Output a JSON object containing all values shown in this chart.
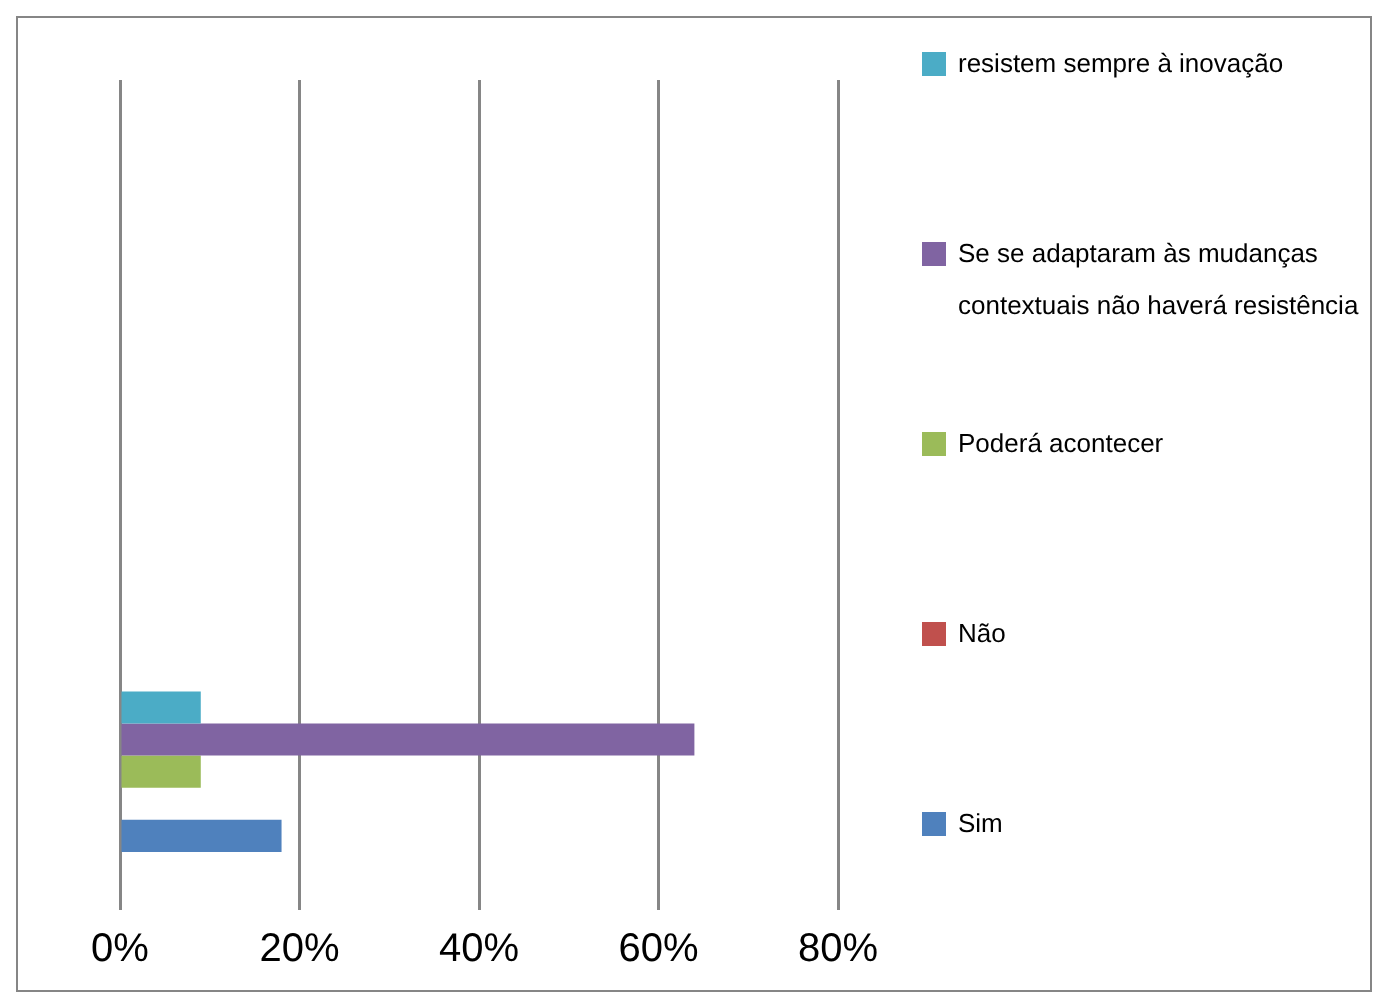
{
  "chart_data": {
    "type": "bar",
    "orientation": "horizontal",
    "categories": [
      null,
      null,
      null
    ],
    "series": [
      {
        "name": "resistem sempre à inovação",
        "color": "#4bacc6",
        "values": [
          null,
          null,
          9
        ]
      },
      {
        "name": "Se se adaptaram às mudanças contextuais não haverá resistência",
        "color": "#8064a2",
        "values": [
          null,
          null,
          64
        ]
      },
      {
        "name": "Poderá acontecer",
        "color": "#9bbb59",
        "values": [
          null,
          null,
          9
        ]
      },
      {
        "name": "Não",
        "color": "#c0504d",
        "values": [
          null,
          null,
          0
        ]
      },
      {
        "name": "Sim",
        "color": "#4f81bd",
        "values": [
          null,
          null,
          18
        ]
      }
    ],
    "xlim": [
      0,
      80
    ],
    "xticks": [
      {
        "value": 0,
        "label": "0%"
      },
      {
        "value": 20,
        "label": "20%"
      },
      {
        "value": 40,
        "label": "40%"
      },
      {
        "value": 60,
        "label": "60%"
      },
      {
        "value": 80,
        "label": "80%"
      }
    ],
    "grid": "x",
    "legend": "right"
  }
}
